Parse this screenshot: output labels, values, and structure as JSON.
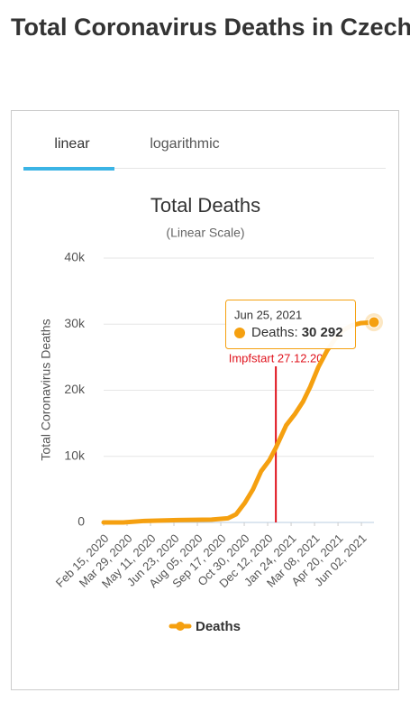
{
  "header": {
    "title": "Total Coronavirus Deaths in Czechia"
  },
  "tabs": [
    "linear",
    "logarithmic"
  ],
  "chart_data": {
    "type": "line",
    "title": "Total Deaths",
    "subtitle": "(Linear Scale)",
    "y_label": "Total Coronavirus Deaths",
    "x": [
      "2020-02-15",
      "2020-03-22",
      "2020-04-30",
      "2020-06-30",
      "2020-08-31",
      "2020-09-30",
      "2020-10-15",
      "2020-10-31",
      "2020-11-15",
      "2020-11-30",
      "2020-12-15",
      "2020-12-27",
      "2021-01-15",
      "2021-01-31",
      "2021-02-15",
      "2021-02-28",
      "2021-03-15",
      "2021-03-31",
      "2021-04-15",
      "2021-04-30",
      "2021-05-15",
      "2021-05-31",
      "2021-06-25"
    ],
    "series": [
      {
        "name": "Deaths",
        "color": "#f5a010",
        "values": [
          0,
          1,
          230,
          350,
          430,
          630,
          1230,
          2950,
          5000,
          7750,
          9400,
          11300,
          14700,
          16400,
          18300,
          20500,
          23500,
          26000,
          27800,
          29100,
          29800,
          30150,
          30292
        ]
      }
    ],
    "xlim": [
      "2020-02-15",
      "2021-06-25"
    ],
    "xticks": [
      {
        "value": "2020-02-15",
        "label": "Feb 15, 2020"
      },
      {
        "value": "2020-03-29",
        "label": "Mar 29, 2020"
      },
      {
        "value": "2020-05-11",
        "label": "May 11, 2020"
      },
      {
        "value": "2020-06-23",
        "label": "Jun 23, 2020"
      },
      {
        "value": "2020-08-05",
        "label": "Aug 05, 2020"
      },
      {
        "value": "2020-09-17",
        "label": "Sep 17, 2020"
      },
      {
        "value": "2020-10-30",
        "label": "Oct 30, 2020"
      },
      {
        "value": "2020-12-12",
        "label": "Dec 12, 2020"
      },
      {
        "value": "2021-01-24",
        "label": "Jan 24, 2021"
      },
      {
        "value": "2021-03-08",
        "label": "Mar 08, 2021"
      },
      {
        "value": "2021-04-20",
        "label": "Apr 20, 2021"
      },
      {
        "value": "2021-06-02",
        "label": "Jun 02, 2021"
      }
    ],
    "ylim": [
      0,
      40000
    ],
    "yticks": [
      0,
      {
        "value": 10000,
        "label": "10k"
      },
      {
        "value": 20000,
        "label": "20k"
      },
      {
        "value": 30000,
        "label": "30k"
      },
      {
        "value": 40000,
        "label": "40k"
      }
    ],
    "grid": true,
    "annotation": {
      "x": "2020-12-27",
      "label": "Impfstart 27.12.20",
      "color": "#e0141e"
    },
    "tooltip": {
      "x_label": "Jun 25, 2021",
      "series_label": "Deaths:",
      "value_label": "30 292"
    }
  }
}
